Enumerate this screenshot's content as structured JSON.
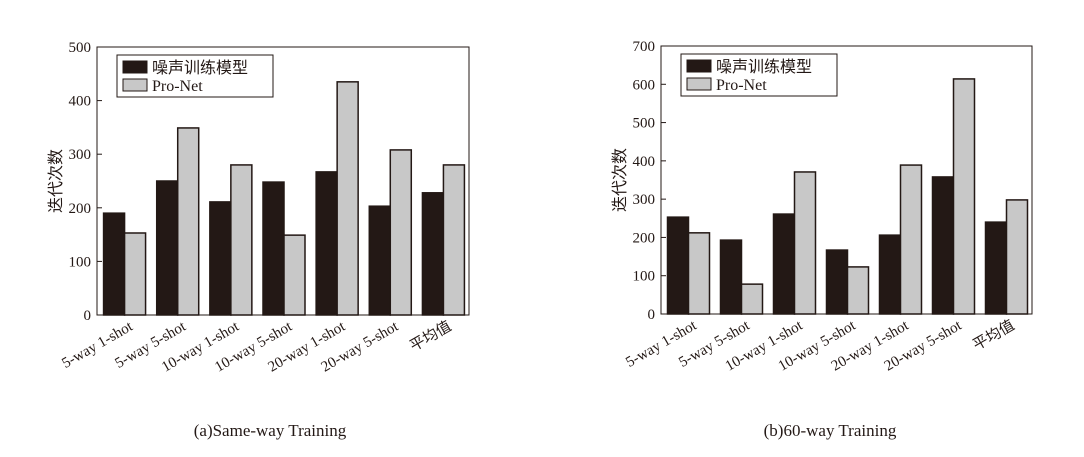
{
  "chart_data": [
    {
      "type": "bar",
      "title": "",
      "caption": "(a)Same-way Training",
      "ylabel": "迭代次数",
      "xlabel": "",
      "ylim": [
        0,
        500
      ],
      "yticks": [
        0,
        100,
        200,
        300,
        400,
        500
      ],
      "categories": [
        "5-way 1-shot",
        "5-way 5-shot",
        "10-way 1-shot",
        "10-way 5-shot",
        "20-way 1-shot",
        "20-way 5-shot",
        "平均值"
      ],
      "legend_position": "top-left",
      "series": [
        {
          "name": "噪声训练模型",
          "color": "#231815",
          "values": [
            190,
            250,
            211,
            248,
            267,
            203,
            228
          ]
        },
        {
          "name": "Pro-Net",
          "color": "#c8c8c8",
          "values": [
            153,
            349,
            280,
            149,
            435,
            308,
            280
          ]
        }
      ]
    },
    {
      "type": "bar",
      "title": "",
      "caption": "(b)60-way Training",
      "ylabel": "迭代次数",
      "xlabel": "",
      "ylim": [
        0,
        700
      ],
      "yticks": [
        0,
        100,
        200,
        300,
        400,
        500,
        600,
        700
      ],
      "categories": [
        "5-way 1-shot",
        "5-way 5-shot",
        "10-way 1-shot",
        "10-way 5-shot",
        "20-way 1-shot",
        "20-way 5-shot",
        "平均值"
      ],
      "legend_position": "top-left",
      "series": [
        {
          "name": "噪声训练模型",
          "color": "#231815",
          "values": [
            253,
            193,
            261,
            167,
            206,
            358,
            240
          ]
        },
        {
          "name": "Pro-Net",
          "color": "#c8c8c8",
          "values": [
            212,
            78,
            371,
            123,
            389,
            614,
            298
          ]
        }
      ]
    }
  ]
}
